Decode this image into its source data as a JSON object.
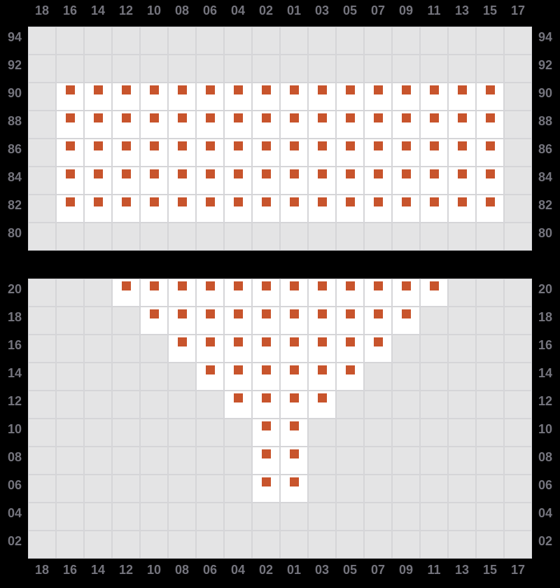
{
  "colors": {
    "background": "#000000",
    "unavailable_cell": "#e4e4e5",
    "available_cell": "#ffffff",
    "grid_line": "#d5d5d8",
    "marker": "#c8542c",
    "label_text": "#74747d"
  },
  "chart_data": {
    "type": "heatmap",
    "description": "Seat-map grid: white cells containing an orange square marker, plain gray cells otherwise",
    "column_axis": {
      "shown": [
        "top",
        "bottom"
      ],
      "labels": [
        "18",
        "16",
        "14",
        "12",
        "10",
        "08",
        "06",
        "04",
        "02",
        "01",
        "03",
        "05",
        "07",
        "09",
        "11",
        "13",
        "15",
        "17"
      ]
    },
    "row_axis": {
      "shown": [
        "left",
        "right"
      ]
    },
    "cell_states": {
      "marked": "white cell with centered orange square near cell top",
      "unmarked": "light gray cell"
    },
    "panels": [
      {
        "name": "upper-block",
        "rows": [
          {
            "label": "94",
            "marked": []
          },
          {
            "label": "92",
            "marked": []
          },
          {
            "label": "90",
            "marked": [
              "16",
              "14",
              "12",
              "10",
              "08",
              "06",
              "04",
              "02",
              "01",
              "03",
              "05",
              "07",
              "09",
              "11",
              "13",
              "15"
            ]
          },
          {
            "label": "88",
            "marked": [
              "16",
              "14",
              "12",
              "10",
              "08",
              "06",
              "04",
              "02",
              "01",
              "03",
              "05",
              "07",
              "09",
              "11",
              "13",
              "15"
            ]
          },
          {
            "label": "86",
            "marked": [
              "16",
              "14",
              "12",
              "10",
              "08",
              "06",
              "04",
              "02",
              "01",
              "03",
              "05",
              "07",
              "09",
              "11",
              "13",
              "15"
            ]
          },
          {
            "label": "84",
            "marked": [
              "16",
              "14",
              "12",
              "10",
              "08",
              "06",
              "04",
              "02",
              "01",
              "03",
              "05",
              "07",
              "09",
              "11",
              "13",
              "15"
            ]
          },
          {
            "label": "82",
            "marked": [
              "16",
              "14",
              "12",
              "10",
              "08",
              "06",
              "04",
              "02",
              "01",
              "03",
              "05",
              "07",
              "09",
              "11",
              "13",
              "15"
            ]
          },
          {
            "label": "80",
            "marked": []
          }
        ]
      },
      {
        "name": "lower-block",
        "rows": [
          {
            "label": "20",
            "marked": [
              "12",
              "10",
              "08",
              "06",
              "04",
              "02",
              "01",
              "03",
              "05",
              "07",
              "09",
              "11"
            ]
          },
          {
            "label": "18",
            "marked": [
              "10",
              "08",
              "06",
              "04",
              "02",
              "01",
              "03",
              "05",
              "07",
              "09"
            ]
          },
          {
            "label": "16",
            "marked": [
              "08",
              "06",
              "04",
              "02",
              "01",
              "03",
              "05",
              "07"
            ]
          },
          {
            "label": "14",
            "marked": [
              "06",
              "04",
              "02",
              "01",
              "03",
              "05"
            ]
          },
          {
            "label": "12",
            "marked": [
              "04",
              "02",
              "01",
              "03"
            ]
          },
          {
            "label": "10",
            "marked": [
              "02",
              "01"
            ]
          },
          {
            "label": "08",
            "marked": [
              "02",
              "01"
            ]
          },
          {
            "label": "06",
            "marked": [
              "02",
              "01"
            ]
          },
          {
            "label": "04",
            "marked": []
          },
          {
            "label": "02",
            "marked": []
          }
        ]
      }
    ]
  }
}
